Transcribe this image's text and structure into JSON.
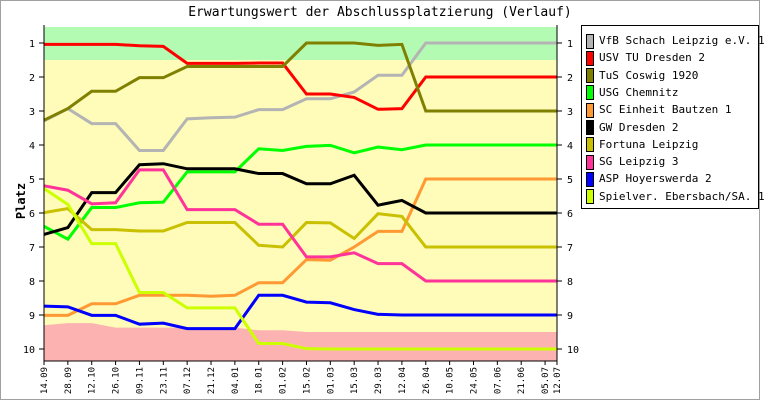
{
  "chart_data": {
    "type": "line",
    "title": "Erwartungswert der Abschlussplatzierung (Verlauf)",
    "xlabel": "",
    "ylabel": "Platz",
    "ylim": [
      10.5,
      0.5
    ],
    "yticks": [
      "1",
      "2",
      "3",
      "4",
      "5",
      "6",
      "7",
      "8",
      "9",
      "10"
    ],
    "legend_position": "right",
    "categories": [
      "14.09",
      "28.09",
      "12.10",
      "26.10",
      "09.11",
      "23.11",
      "07.12",
      "21.12",
      "04.01",
      "18.01",
      "01.02",
      "15.02",
      "01.03",
      "15.03",
      "29.03",
      "12.04",
      "26.04",
      "10.05",
      "24.05",
      "07.06",
      "21.06",
      "05.07",
      "12.07"
    ],
    "day_offsets": [
      0,
      14,
      28,
      42,
      56,
      70,
      84,
      98,
      112,
      126,
      140,
      154,
      168,
      182,
      196,
      210,
      224,
      238,
      252,
      266,
      280,
      294,
      301
    ],
    "bands": {
      "promotion_until": 1.5,
      "relegation_from": [
        9.3,
        9.24,
        9.24,
        9.37,
        9.37,
        9.37,
        9.37,
        9.37,
        9.37,
        9.45,
        9.45,
        9.5,
        9.5,
        9.5,
        9.5,
        9.5,
        9.5,
        9.5,
        9.5,
        9.5,
        9.5,
        9.5,
        9.5
      ],
      "colors": {
        "promotion": "#b3fbb3",
        "middle": "#fefcb8",
        "relegation": "#fdb2b2"
      }
    },
    "series": [
      {
        "name": "VfB Schach Leipzig e.V. 1",
        "color": "#b4b4b4",
        "values": [
          3.29,
          2.93,
          3.37,
          3.37,
          4.16,
          4.16,
          3.23,
          3.2,
          3.18,
          2.96,
          2.96,
          2.64,
          2.64,
          2.44,
          1.95,
          1.95,
          1,
          1,
          1,
          1,
          1,
          1,
          1
        ]
      },
      {
        "name": "USV TU Dresden 2",
        "color": "#ff0000",
        "values": [
          1.04,
          1.04,
          1.04,
          1.04,
          1.08,
          1.1,
          1.6,
          1.6,
          1.6,
          1.59,
          1.59,
          2.5,
          2.5,
          2.6,
          2.95,
          2.93,
          2,
          2,
          2,
          2,
          2,
          2,
          2
        ]
      },
      {
        "name": "TuS Coswig 1920",
        "color": "#808000",
        "values": [
          3.27,
          2.93,
          2.42,
          2.42,
          2.02,
          2.02,
          1.69,
          1.69,
          1.69,
          1.69,
          1.69,
          1.0,
          1.0,
          1.0,
          1.07,
          1.04,
          3,
          3,
          3,
          3,
          3,
          3,
          3
        ]
      },
      {
        "name": "USG Chemnitz",
        "color": "#00ff00",
        "values": [
          6.39,
          6.77,
          5.84,
          5.84,
          5.7,
          5.68,
          4.79,
          4.79,
          4.79,
          4.11,
          4.16,
          4.04,
          4.01,
          4.23,
          4.06,
          4.14,
          4,
          4,
          4,
          4,
          4,
          4,
          4
        ]
      },
      {
        "name": "SC Einheit Bautzen 1",
        "color": "#ff9933",
        "values": [
          9.01,
          9.01,
          8.67,
          8.67,
          8.42,
          8.42,
          8.42,
          8.45,
          8.42,
          8.05,
          8.05,
          7.37,
          7.39,
          7.0,
          6.54,
          6.54,
          5,
          5,
          5,
          5,
          5,
          5,
          5
        ]
      },
      {
        "name": "GW Dresden 2",
        "color": "#000000",
        "values": [
          6.63,
          6.43,
          5.4,
          5.4,
          4.58,
          4.55,
          4.7,
          4.7,
          4.7,
          4.84,
          4.84,
          5.14,
          5.14,
          4.89,
          5.77,
          5.63,
          6,
          6,
          6,
          6,
          6,
          6,
          6
        ]
      },
      {
        "name": "Fortuna Leipzig",
        "color": "#c8c000",
        "values": [
          5.99,
          5.87,
          6.49,
          6.49,
          6.53,
          6.53,
          6.28,
          6.28,
          6.28,
          6.95,
          7.0,
          6.28,
          6.29,
          6.75,
          6.02,
          6.1,
          7,
          7,
          7,
          7,
          7,
          7,
          7
        ]
      },
      {
        "name": "SG Leipzig 3",
        "color": "#ff3399",
        "values": [
          5.2,
          5.33,
          5.73,
          5.7,
          4.73,
          4.73,
          5.9,
          5.9,
          5.9,
          6.33,
          6.33,
          7.29,
          7.29,
          7.17,
          7.49,
          7.49,
          8,
          8,
          8,
          8,
          8,
          8,
          8
        ]
      },
      {
        "name": "ASP Hoyerswerda 2",
        "color": "#0000ff",
        "values": [
          8.74,
          8.76,
          9.01,
          9.01,
          9.27,
          9.24,
          9.4,
          9.4,
          9.4,
          8.42,
          8.42,
          8.62,
          8.64,
          8.84,
          8.98,
          9,
          9,
          9,
          9,
          9,
          9,
          9,
          9
        ]
      },
      {
        "name": "Spielver. Ebersbach/SA. 1",
        "color": "#ccff00",
        "values": [
          5.28,
          5.75,
          6.9,
          6.9,
          8.34,
          8.34,
          8.79,
          8.79,
          8.79,
          9.84,
          9.84,
          9.99,
          10,
          10,
          10,
          10,
          10,
          10,
          10,
          10,
          10,
          10,
          10
        ]
      }
    ]
  }
}
